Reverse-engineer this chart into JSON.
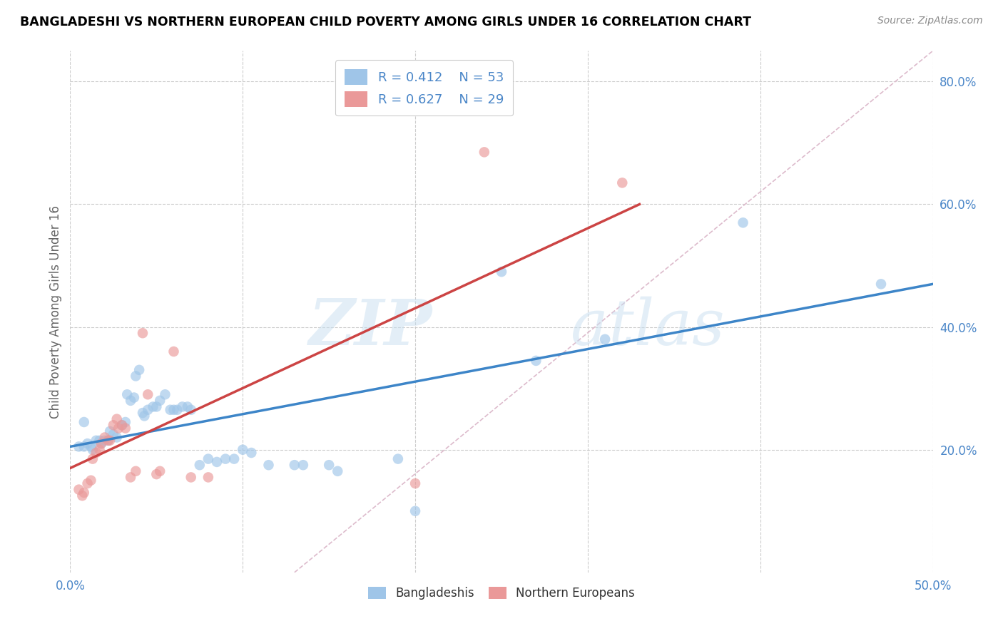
{
  "title": "BANGLADESHI VS NORTHERN EUROPEAN CHILD POVERTY AMONG GIRLS UNDER 16 CORRELATION CHART",
  "source": "Source: ZipAtlas.com",
  "ylabel": "Child Poverty Among Girls Under 16",
  "xlim": [
    0.0,
    0.5
  ],
  "ylim": [
    0.0,
    0.85
  ],
  "xticks": [
    0.0,
    0.1,
    0.2,
    0.3,
    0.4,
    0.5
  ],
  "xtick_labels": [
    "0.0%",
    "",
    "",
    "",
    "",
    "50.0%"
  ],
  "ytick_labels_right": [
    "20.0%",
    "40.0%",
    "60.0%",
    "80.0%"
  ],
  "yticks_right": [
    0.2,
    0.4,
    0.6,
    0.8
  ],
  "blue_color": "#9fc5e8",
  "pink_color": "#ea9999",
  "blue_line_color": "#3d85c8",
  "pink_line_color": "#cc4444",
  "diagonal_color": "#ddbbcc",
  "watermark_zip": "ZIP",
  "watermark_atlas": "atlas",
  "background_color": "#ffffff",
  "grid_color": "#cccccc",
  "title_color": "#000000",
  "label_color": "#4a86c8",
  "blue_scatter": [
    [
      0.005,
      0.205
    ],
    [
      0.008,
      0.205
    ],
    [
      0.01,
      0.21
    ],
    [
      0.012,
      0.205
    ],
    [
      0.013,
      0.2
    ],
    [
      0.015,
      0.215
    ],
    [
      0.017,
      0.215
    ],
    [
      0.018,
      0.21
    ],
    [
      0.02,
      0.215
    ],
    [
      0.022,
      0.215
    ],
    [
      0.023,
      0.23
    ],
    [
      0.025,
      0.225
    ],
    [
      0.027,
      0.22
    ],
    [
      0.03,
      0.24
    ],
    [
      0.032,
      0.245
    ],
    [
      0.033,
      0.29
    ],
    [
      0.035,
      0.28
    ],
    [
      0.037,
      0.285
    ],
    [
      0.038,
      0.32
    ],
    [
      0.04,
      0.33
    ],
    [
      0.042,
      0.26
    ],
    [
      0.043,
      0.255
    ],
    [
      0.045,
      0.265
    ],
    [
      0.048,
      0.27
    ],
    [
      0.05,
      0.27
    ],
    [
      0.052,
      0.28
    ],
    [
      0.055,
      0.29
    ],
    [
      0.058,
      0.265
    ],
    [
      0.06,
      0.265
    ],
    [
      0.062,
      0.265
    ],
    [
      0.065,
      0.27
    ],
    [
      0.068,
      0.27
    ],
    [
      0.07,
      0.265
    ],
    [
      0.075,
      0.175
    ],
    [
      0.08,
      0.185
    ],
    [
      0.085,
      0.18
    ],
    [
      0.09,
      0.185
    ],
    [
      0.095,
      0.185
    ],
    [
      0.1,
      0.2
    ],
    [
      0.105,
      0.195
    ],
    [
      0.115,
      0.175
    ],
    [
      0.13,
      0.175
    ],
    [
      0.135,
      0.175
    ],
    [
      0.15,
      0.175
    ],
    [
      0.155,
      0.165
    ],
    [
      0.008,
      0.245
    ],
    [
      0.19,
      0.185
    ],
    [
      0.2,
      0.1
    ],
    [
      0.25,
      0.49
    ],
    [
      0.27,
      0.345
    ],
    [
      0.31,
      0.38
    ],
    [
      0.39,
      0.57
    ],
    [
      0.47,
      0.47
    ]
  ],
  "pink_scatter": [
    [
      0.005,
      0.135
    ],
    [
      0.007,
      0.125
    ],
    [
      0.008,
      0.13
    ],
    [
      0.01,
      0.145
    ],
    [
      0.012,
      0.15
    ],
    [
      0.013,
      0.185
    ],
    [
      0.015,
      0.195
    ],
    [
      0.017,
      0.2
    ],
    [
      0.018,
      0.21
    ],
    [
      0.02,
      0.22
    ],
    [
      0.022,
      0.215
    ],
    [
      0.023,
      0.215
    ],
    [
      0.025,
      0.24
    ],
    [
      0.027,
      0.25
    ],
    [
      0.028,
      0.235
    ],
    [
      0.03,
      0.24
    ],
    [
      0.032,
      0.235
    ],
    [
      0.035,
      0.155
    ],
    [
      0.038,
      0.165
    ],
    [
      0.042,
      0.39
    ],
    [
      0.045,
      0.29
    ],
    [
      0.05,
      0.16
    ],
    [
      0.052,
      0.165
    ],
    [
      0.06,
      0.36
    ],
    [
      0.07,
      0.155
    ],
    [
      0.08,
      0.155
    ],
    [
      0.2,
      0.145
    ],
    [
      0.24,
      0.685
    ],
    [
      0.32,
      0.635
    ]
  ],
  "blue_line": [
    [
      0.0,
      0.205
    ],
    [
      0.5,
      0.47
    ]
  ],
  "pink_line": [
    [
      0.0,
      0.17
    ],
    [
      0.33,
      0.6
    ]
  ],
  "diagonal_line": [
    [
      0.13,
      0.0
    ],
    [
      0.5,
      0.85
    ]
  ]
}
